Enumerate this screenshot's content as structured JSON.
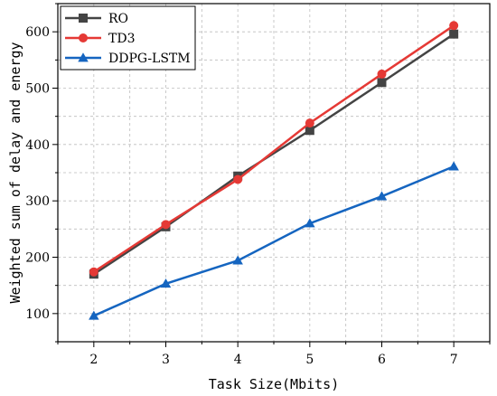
{
  "chart_data": {
    "type": "line",
    "title": "",
    "xlabel": "Task Size(Mbits)",
    "ylabel": "Weighted sum of delay and energy",
    "x": [
      2,
      3,
      4,
      5,
      6,
      7
    ],
    "xlim": [
      1.5,
      7.5
    ],
    "ylim": [
      50,
      650
    ],
    "xticks": [
      2,
      3,
      4,
      5,
      6,
      7
    ],
    "yticks": [
      100,
      200,
      300,
      400,
      500,
      600
    ],
    "grid": true,
    "legend_position": "top-left",
    "series": [
      {
        "name": "RO",
        "color": "#444444",
        "marker": "square",
        "values": [
          170,
          254,
          344,
          425,
          510,
          596
        ]
      },
      {
        "name": "TD3",
        "color": "#e53935",
        "marker": "circle",
        "values": [
          174,
          258,
          338,
          438,
          525,
          611
        ]
      },
      {
        "name": "DDPG-LSTM",
        "color": "#1565c0",
        "marker": "triangle",
        "values": [
          96,
          153,
          194,
          260,
          308,
          361
        ]
      }
    ]
  }
}
